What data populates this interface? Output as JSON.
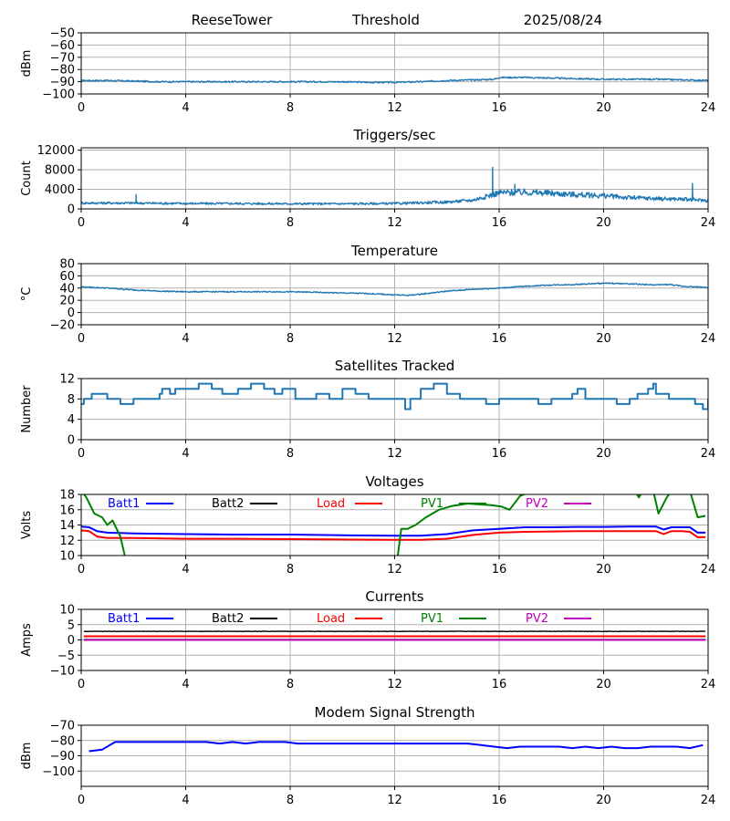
{
  "header": {
    "station": "ReeseTower",
    "mode": "Threshold",
    "date": "2025/08/24"
  },
  "chart_data": [
    {
      "id": "signal",
      "type": "line",
      "title": "",
      "ylabel": "dBm",
      "xlim": [
        0,
        24
      ],
      "xticks": [
        0,
        4,
        8,
        12,
        16,
        20,
        24
      ],
      "ylim": [
        -100,
        -50
      ],
      "yticks": [
        -100,
        -90,
        -80,
        -70,
        -60,
        -50
      ],
      "grid": true,
      "series": [
        {
          "color": "#1f77b4",
          "noise": 0.4,
          "x": [
            0,
            1,
            2,
            3,
            4,
            6,
            8,
            10,
            11,
            12,
            13,
            14,
            15,
            15.8,
            16,
            17,
            18,
            19,
            20,
            21,
            22,
            23,
            24
          ],
          "y": [
            -89,
            -89,
            -89.5,
            -90,
            -90,
            -90,
            -90,
            -90,
            -90.5,
            -90.5,
            -90,
            -89,
            -88.5,
            -88,
            -86.5,
            -86.5,
            -87,
            -87.5,
            -88,
            -88,
            -88,
            -88.5,
            -89
          ]
        }
      ]
    },
    {
      "id": "triggers",
      "type": "line",
      "title": "Triggers/sec",
      "ylabel": "Count",
      "xlim": [
        0,
        24
      ],
      "xticks": [
        0,
        4,
        8,
        12,
        16,
        20,
        24
      ],
      "ylim": [
        0,
        12500
      ],
      "yticks": [
        0,
        4000,
        8000,
        12000
      ],
      "grid": true,
      "series": [
        {
          "color": "#1f77b4",
          "noise": 0.22,
          "spikes": [
            [
              2.1,
              2900
            ],
            [
              15.75,
              8500
            ],
            [
              23.4,
              5200
            ],
            [
              16.6,
              5000
            ]
          ],
          "x": [
            0,
            2,
            4,
            6,
            8,
            10,
            12,
            14,
            15,
            15.8,
            16,
            17,
            18,
            19,
            20,
            21,
            22,
            23,
            24
          ],
          "y": [
            1200,
            1200,
            1100,
            1100,
            1050,
            1050,
            1100,
            1400,
            1800,
            3000,
            3300,
            3400,
            3200,
            2900,
            2700,
            2300,
            2100,
            2000,
            1700
          ]
        }
      ]
    },
    {
      "id": "temperature",
      "type": "line",
      "title": "Temperature",
      "ylabel": "°C",
      "xlim": [
        0,
        24
      ],
      "xticks": [
        0,
        4,
        8,
        12,
        16,
        20,
        24
      ],
      "ylim": [
        -20,
        80
      ],
      "yticks": [
        -20,
        0,
        20,
        40,
        60,
        80
      ],
      "grid": true,
      "series": [
        {
          "color": "#1f77b4",
          "noise": 0.3,
          "x": [
            0,
            1,
            2,
            3,
            4,
            6,
            8,
            9,
            10,
            11,
            12,
            12.5,
            13,
            14,
            15,
            16,
            17,
            18,
            19,
            20,
            21,
            22,
            22.5,
            23,
            24
          ],
          "y": [
            42,
            40,
            37,
            35,
            34,
            34,
            34,
            33,
            32,
            31,
            29,
            28,
            30,
            35,
            38,
            40,
            43,
            45,
            46,
            48,
            47,
            45,
            46,
            43,
            41
          ]
        }
      ]
    },
    {
      "id": "satellites",
      "type": "line",
      "title": "Satellites Tracked",
      "ylabel": "Number",
      "xlim": [
        0,
        24
      ],
      "xticks": [
        0,
        4,
        8,
        12,
        16,
        20,
        24
      ],
      "ylim": [
        0,
        12
      ],
      "yticks": [
        0,
        4,
        8,
        12
      ],
      "grid": true,
      "series": [
        {
          "color": "#1f77b4",
          "step": true,
          "x": [
            0,
            0.1,
            0.4,
            1,
            1.2,
            1.5,
            2,
            2.4,
            3,
            3.1,
            3.4,
            3.6,
            4,
            4.5,
            5,
            5.4,
            6,
            6.5,
            7,
            7.4,
            7.7,
            8,
            8.2,
            9,
            9.5,
            10,
            10.5,
            11,
            12,
            12.4,
            12.6,
            13,
            13.5,
            14,
            14.5,
            15,
            15.5,
            16,
            17,
            17.5,
            18,
            18.8,
            19,
            19.3,
            20,
            20.5,
            21,
            21.3,
            21.7,
            21.9,
            22,
            22.5,
            23,
            23.5,
            23.8,
            24
          ],
          "y": [
            7,
            8,
            9,
            8,
            8,
            7,
            8,
            8,
            9,
            10,
            9,
            10,
            10,
            11,
            10,
            9,
            10,
            11,
            10,
            9,
            10,
            10,
            8,
            9,
            8,
            10,
            9,
            8,
            8,
            6,
            8,
            10,
            11,
            9,
            8,
            8,
            7,
            8,
            8,
            7,
            8,
            9,
            10,
            8,
            8,
            7,
            8,
            9,
            10,
            11,
            9,
            8,
            8,
            7,
            6,
            8
          ]
        }
      ]
    },
    {
      "id": "voltages",
      "type": "line",
      "title": "Voltages",
      "ylabel": "Volts",
      "xlim": [
        0,
        24
      ],
      "xticks": [
        0,
        4,
        8,
        12,
        16,
        20,
        24
      ],
      "ylim": [
        10,
        18
      ],
      "yticks": [
        10,
        12,
        14,
        16,
        18
      ],
      "grid": true,
      "legend_position": "top",
      "series": [
        {
          "name": "Batt1",
          "color": "#0000ff",
          "x": [
            0,
            0.3,
            0.6,
            1,
            2,
            4,
            6,
            8,
            10,
            12,
            13,
            14,
            15,
            16,
            17,
            18,
            19,
            20,
            21,
            22,
            22.3,
            22.6,
            23,
            23.3,
            23.6,
            23.9
          ],
          "y": [
            13.8,
            13.7,
            13.2,
            13.0,
            12.9,
            12.8,
            12.75,
            12.75,
            12.65,
            12.6,
            12.6,
            12.8,
            13.3,
            13.5,
            13.7,
            13.7,
            13.75,
            13.75,
            13.8,
            13.8,
            13.4,
            13.7,
            13.7,
            13.7,
            13.0,
            13.0
          ]
        },
        {
          "name": "Batt2",
          "color": "#000000",
          "x": [],
          "y": []
        },
        {
          "name": "Load",
          "color": "#ff0000",
          "x": [
            0,
            0.3,
            0.6,
            1,
            2,
            4,
            6,
            8,
            10,
            12,
            13,
            14,
            15,
            16,
            17,
            18,
            19,
            20,
            21,
            22,
            22.3,
            22.6,
            23,
            23.3,
            23.6,
            23.9
          ],
          "y": [
            13.3,
            13.2,
            12.5,
            12.3,
            12.3,
            12.2,
            12.2,
            12.15,
            12.1,
            12.05,
            12.05,
            12.2,
            12.7,
            13.0,
            13.1,
            13.15,
            13.2,
            13.2,
            13.2,
            13.2,
            12.8,
            13.2,
            13.2,
            13.1,
            12.4,
            12.4
          ]
        },
        {
          "name": "PV1",
          "color": "#008000",
          "segments": [
            {
              "x": [
                0,
                0.2,
                0.5,
                0.8,
                1.0,
                1.2,
                1.5,
                1.7
              ],
              "y": [
                18.5,
                17.6,
                15.5,
                15.0,
                14.0,
                14.6,
                12.5,
                9.5
              ]
            },
            {
              "x": [
                12.1,
                12.25,
                12.5,
                12.8,
                13.2,
                13.7,
                14.2,
                14.8,
                15.2,
                15.7,
                16.1,
                16.4,
                16.8,
                17.3
              ],
              "y": [
                9.5,
                13.5,
                13.5,
                14.0,
                15.0,
                16.0,
                16.5,
                16.8,
                16.7,
                16.6,
                16.4,
                16.0,
                17.8,
                18.5
              ]
            },
            {
              "x": [
                21.2,
                21.35,
                21.5
              ],
              "y": [
                18.5,
                17.6,
                18.5
              ]
            },
            {
              "x": [
                21.9,
                22.1,
                22.4,
                22.6
              ],
              "y": [
                18.5,
                15.5,
                17.5,
                18.5
              ]
            },
            {
              "x": [
                23.3,
                23.6,
                23.9
              ],
              "y": [
                18.5,
                15.0,
                15.2
              ]
            }
          ]
        },
        {
          "name": "PV2",
          "color": "#bf00bf",
          "x": [],
          "y": []
        }
      ]
    },
    {
      "id": "currents",
      "type": "line",
      "title": "Currents",
      "ylabel": "Amps",
      "xlim": [
        0,
        24
      ],
      "xticks": [
        0,
        4,
        8,
        12,
        16,
        20,
        24
      ],
      "ylim": [
        -10,
        10
      ],
      "yticks": [
        -10,
        -5,
        0,
        5,
        10
      ],
      "grid": true,
      "legend_position": "top",
      "series": [
        {
          "name": "Batt1",
          "color": "#0000ff",
          "x": [
            0.1,
            23.9
          ],
          "y": [
            1.2,
            1.2
          ]
        },
        {
          "name": "Batt2",
          "color": "#000000",
          "noise": 0.12,
          "x": [
            0.1,
            4,
            8,
            12,
            16,
            20,
            23.9
          ],
          "y": [
            2.8,
            2.8,
            2.8,
            2.8,
            2.8,
            2.8,
            2.8
          ]
        },
        {
          "name": "Load",
          "color": "#ff0000",
          "x": [
            0.1,
            23.9
          ],
          "y": [
            1.2,
            1.2
          ]
        },
        {
          "name": "PV1",
          "color": "#008000",
          "x": [
            0.1,
            23.9
          ],
          "y": [
            0.1,
            0.1
          ]
        },
        {
          "name": "PV2",
          "color": "#bf00bf",
          "x": [
            0.1,
            23.9
          ],
          "y": [
            0.0,
            0.0
          ]
        }
      ]
    },
    {
      "id": "modem",
      "type": "line",
      "title": "Modem Signal Strength",
      "ylabel": "dBm",
      "xlim": [
        0,
        24
      ],
      "xticks": [
        0,
        4,
        8,
        12,
        16,
        20,
        24
      ],
      "ylim": [
        -110,
        -70
      ],
      "yticks": [
        -100,
        -90,
        -80,
        -70
      ],
      "grid": true,
      "series": [
        {
          "color": "#0000ff",
          "x": [
            0.3,
            0.8,
            1.3,
            2,
            3,
            4,
            4.8,
            5.3,
            5.8,
            6.3,
            6.8,
            7.3,
            7.8,
            8.3,
            9,
            10,
            11,
            12,
            13,
            14,
            14.8,
            15.3,
            15.8,
            16.3,
            16.8,
            17.3,
            17.8,
            18.3,
            18.8,
            19.3,
            19.8,
            20.3,
            20.8,
            21.3,
            21.8,
            22.3,
            22.8,
            23.3,
            23.8
          ],
          "y": [
            -87,
            -86,
            -81,
            -81,
            -81,
            -81,
            -81,
            -82,
            -81,
            -82,
            -81,
            -81,
            -81,
            -82,
            -82,
            -82,
            -82,
            -82,
            -82,
            -82,
            -82,
            -83,
            -84,
            -85,
            -84,
            -84,
            -84,
            -84,
            -85,
            -84,
            -85,
            -84,
            -85,
            -85,
            -84,
            -84,
            -84,
            -85,
            -83
          ]
        }
      ]
    }
  ]
}
